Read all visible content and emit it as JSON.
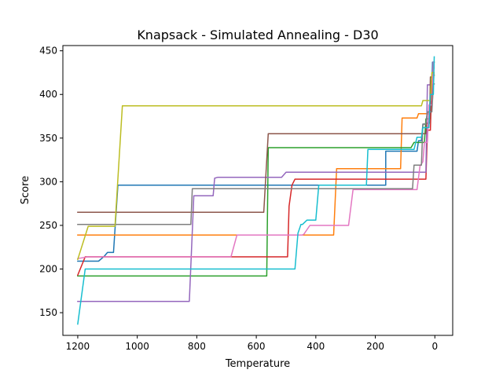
{
  "chart_data": {
    "type": "line",
    "title": "Knapsack - Simulated Annealing - D30",
    "xlabel": "Temperature",
    "ylabel": "Score",
    "xlim": [
      1250,
      -60
    ],
    "ylim": [
      124,
      456
    ],
    "x_reversed": true,
    "xticks": [
      1200,
      1000,
      800,
      600,
      400,
      200,
      0
    ],
    "yticks": [
      150,
      200,
      250,
      300,
      350,
      400,
      450
    ],
    "grid": false,
    "legend": "none",
    "series": [
      {
        "color": "#1f77b4",
        "points": [
          [
            1200,
            209
          ],
          [
            1130,
            209
          ],
          [
            1110,
            215
          ],
          [
            1100,
            219
          ],
          [
            1080,
            219
          ],
          [
            1065,
            296
          ],
          [
            165,
            296
          ],
          [
            165,
            335
          ],
          [
            60,
            335
          ],
          [
            55,
            347
          ],
          [
            45,
            347
          ],
          [
            40,
            366
          ],
          [
            30,
            366
          ],
          [
            25,
            380
          ],
          [
            12,
            380
          ],
          [
            8,
            437
          ],
          [
            3,
            437
          ],
          [
            3,
            430
          ]
        ]
      },
      {
        "color": "#ff7f0e",
        "points": [
          [
            1200,
            239
          ],
          [
            340,
            239
          ],
          [
            330,
            315
          ],
          [
            115,
            315
          ],
          [
            110,
            373
          ],
          [
            60,
            373
          ],
          [
            55,
            378
          ],
          [
            20,
            378
          ],
          [
            15,
            395
          ],
          [
            8,
            395
          ],
          [
            5,
            422
          ],
          [
            2,
            422
          ]
        ]
      },
      {
        "color": "#2ca02c",
        "points": [
          [
            1200,
            192
          ],
          [
            565,
            192
          ],
          [
            560,
            339
          ],
          [
            80,
            339
          ],
          [
            70,
            345
          ],
          [
            35,
            345
          ],
          [
            30,
            372
          ],
          [
            15,
            372
          ],
          [
            10,
            410
          ],
          [
            5,
            410
          ],
          [
            3,
            425
          ]
        ]
      },
      {
        "color": "#d62728",
        "points": [
          [
            1200,
            193
          ],
          [
            1175,
            214
          ],
          [
            495,
            214
          ],
          [
            490,
            272
          ],
          [
            480,
            296
          ],
          [
            470,
            303
          ],
          [
            30,
            303
          ],
          [
            25,
            359
          ],
          [
            15,
            359
          ],
          [
            10,
            420
          ],
          [
            5,
            420
          ],
          [
            3,
            437
          ]
        ]
      },
      {
        "color": "#9467bd",
        "points": [
          [
            1200,
            163
          ],
          [
            825,
            163
          ],
          [
            810,
            284
          ],
          [
            790,
            284
          ],
          [
            745,
            284
          ],
          [
            740,
            304
          ],
          [
            730,
            305
          ],
          [
            515,
            305
          ],
          [
            500,
            311
          ],
          [
            30,
            311
          ],
          [
            25,
            411
          ],
          [
            15,
            411
          ],
          [
            10,
            418
          ],
          [
            5,
            418
          ]
        ]
      },
      {
        "color": "#8c564b",
        "points": [
          [
            1200,
            265
          ],
          [
            575,
            265
          ],
          [
            560,
            355
          ],
          [
            30,
            355
          ],
          [
            28,
            367
          ],
          [
            18,
            367
          ],
          [
            15,
            420
          ],
          [
            8,
            420
          ],
          [
            5,
            437
          ],
          [
            2,
            437
          ]
        ]
      },
      {
        "color": "#e377c2",
        "points": [
          [
            1200,
            212
          ],
          [
            1165,
            214
          ],
          [
            685,
            214
          ],
          [
            665,
            239
          ],
          [
            445,
            239
          ],
          [
            440,
            240
          ],
          [
            420,
            250
          ],
          [
            290,
            250
          ],
          [
            275,
            291
          ],
          [
            60,
            291
          ],
          [
            50,
            318
          ],
          [
            40,
            323
          ],
          [
            35,
            345
          ],
          [
            25,
            345
          ],
          [
            20,
            388
          ],
          [
            10,
            388
          ],
          [
            5,
            437
          ]
        ]
      },
      {
        "color": "#7f7f7f",
        "points": [
          [
            1200,
            251
          ],
          [
            820,
            251
          ],
          [
            815,
            292
          ],
          [
            75,
            292
          ],
          [
            70,
            319
          ],
          [
            45,
            319
          ],
          [
            40,
            366
          ],
          [
            30,
            366
          ],
          [
            25,
            380
          ],
          [
            10,
            380
          ],
          [
            5,
            412
          ],
          [
            2,
            412
          ]
        ]
      },
      {
        "color": "#bcbd22",
        "points": [
          [
            1200,
            211
          ],
          [
            1165,
            249
          ],
          [
            1075,
            249
          ],
          [
            1050,
            387
          ],
          [
            45,
            387
          ],
          [
            40,
            393
          ],
          [
            15,
            393
          ],
          [
            10,
            425
          ],
          [
            3,
            425
          ]
        ]
      },
      {
        "color": "#17becf",
        "points": [
          [
            1200,
            137
          ],
          [
            1175,
            200
          ],
          [
            470,
            200
          ],
          [
            460,
            241
          ],
          [
            450,
            251
          ],
          [
            445,
            251
          ],
          [
            430,
            256
          ],
          [
            400,
            256
          ],
          [
            390,
            296
          ],
          [
            230,
            296
          ],
          [
            225,
            337
          ],
          [
            70,
            337
          ],
          [
            60,
            351
          ],
          [
            45,
            351
          ],
          [
            40,
            362
          ],
          [
            20,
            362
          ],
          [
            15,
            400
          ],
          [
            5,
            400
          ],
          [
            2,
            443
          ]
        ]
      }
    ]
  }
}
